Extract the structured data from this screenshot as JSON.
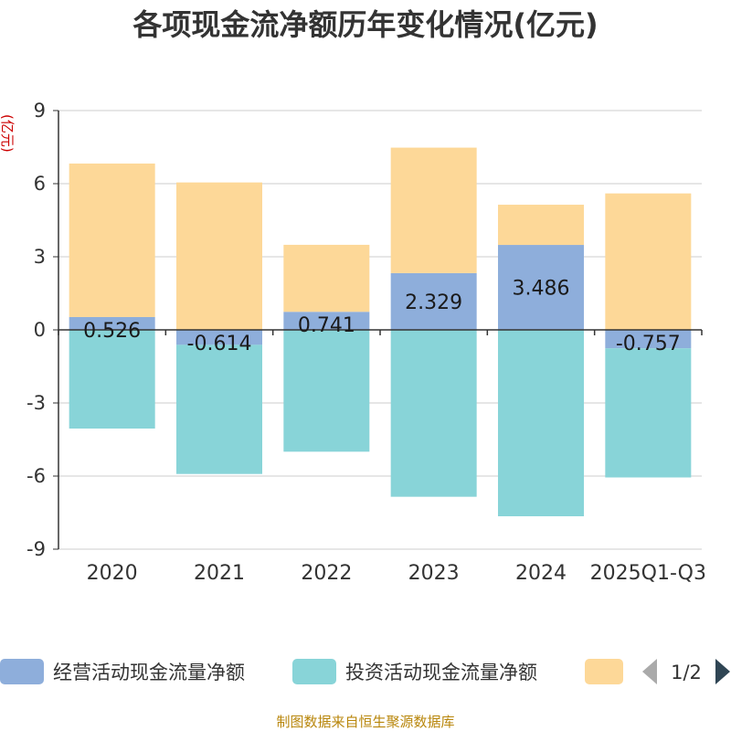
{
  "chart_data": {
    "type": "bar",
    "stacked": true,
    "title": "各项现金流净额历年变化情况(亿元)",
    "ylabel": "(亿元)",
    "ylim": [
      -9,
      9
    ],
    "yticks": [
      9,
      6,
      3,
      0,
      -3,
      -6,
      -9
    ],
    "ytick_labels": [
      "9",
      "6",
      "3",
      "0",
      "-3",
      "-6",
      "-9"
    ],
    "grid": true,
    "categories": [
      "2020",
      "2021",
      "2022",
      "2023",
      "2024",
      "2025Q1-Q3"
    ],
    "series": [
      {
        "name": "经营活动现金流量净额",
        "color": "#8eaedb",
        "values": [
          0.526,
          -0.614,
          0.741,
          2.329,
          3.486,
          -0.757
        ],
        "labels": [
          "0.526",
          "-0.614",
          "0.741",
          "2.329",
          "3.486",
          "-0.757"
        ]
      },
      {
        "name": "投资活动现金流量净额",
        "color": "#88d4d8",
        "values": [
          -4.05,
          -5.3,
          -5.0,
          -6.85,
          -7.65,
          -5.3
        ]
      },
      {
        "name": "",
        "color": "#fdd898",
        "values": [
          6.3,
          6.05,
          2.75,
          5.15,
          1.65,
          5.6
        ]
      }
    ],
    "legend": {
      "position": "bottom",
      "page": "1/2"
    },
    "source": "制图数据来自恒生聚源数据库"
  }
}
